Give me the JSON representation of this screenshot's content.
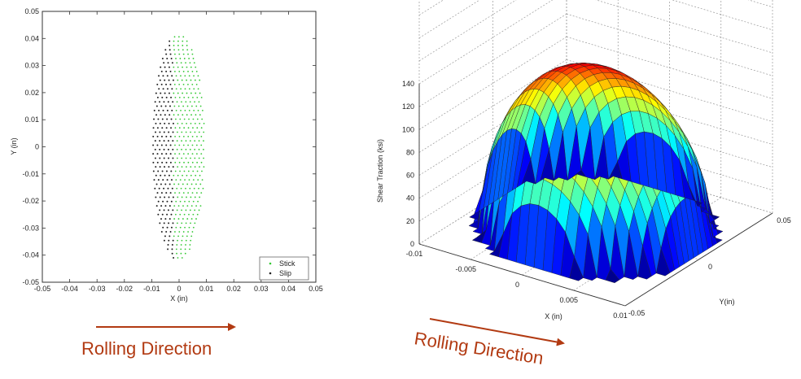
{
  "chart_data": [
    {
      "type": "scatter",
      "xlabel": "X (in)",
      "ylabel": "Y (in)",
      "xlim": [
        -0.05,
        0.05
      ],
      "ylim": [
        -0.05,
        0.05
      ],
      "x_ticks": [
        "-0.05",
        "-0.04",
        "-0.03",
        "-0.02",
        "-0.01",
        "0",
        "0.01",
        "0.02",
        "0.03",
        "0.04",
        "0.05"
      ],
      "y_ticks": [
        "0.05",
        "0.04",
        "0.03",
        "0.02",
        "0.01",
        "0",
        "-0.01",
        "-0.02",
        "-0.03",
        "-0.04",
        "-0.05"
      ],
      "grid": false,
      "legend_position": "bottom-right",
      "contact_patch": {
        "x_range": [
          -0.0095,
          0.0095
        ],
        "y_range": [
          -0.042,
          0.042
        ],
        "stick_slip_boundary_x": -0.002
      },
      "series": [
        {
          "name": "Stick",
          "color": "#33c833",
          "region": "x > -0.002 within contact ellipse"
        },
        {
          "name": "Slip",
          "color": "#222222",
          "region": "x <= -0.002 within contact ellipse"
        }
      ]
    },
    {
      "type": "surface",
      "zlabel": "Shear Traction (ksi)",
      "xlabel": "X (in)",
      "ylabel": "Y(in)",
      "zlim": [
        0,
        140
      ],
      "xlim": [
        -0.01,
        0.01
      ],
      "ylim": [
        -0.05,
        0.05
      ],
      "z_ticks": [
        "0",
        "20",
        "40",
        "60",
        "80",
        "100",
        "120",
        "140"
      ],
      "x_ticks": [
        "-0.01",
        "-0.005",
        "0",
        "0.005",
        "0.01"
      ],
      "y_ticks": [
        "-0.05",
        "0",
        "0.05"
      ],
      "grid": true,
      "colormap": "jet",
      "peak_shear_traction": 140
    }
  ],
  "captions": {
    "left": "Rolling Direction",
    "right": "Rolling Direction"
  },
  "arrow_color": "#b23a12"
}
